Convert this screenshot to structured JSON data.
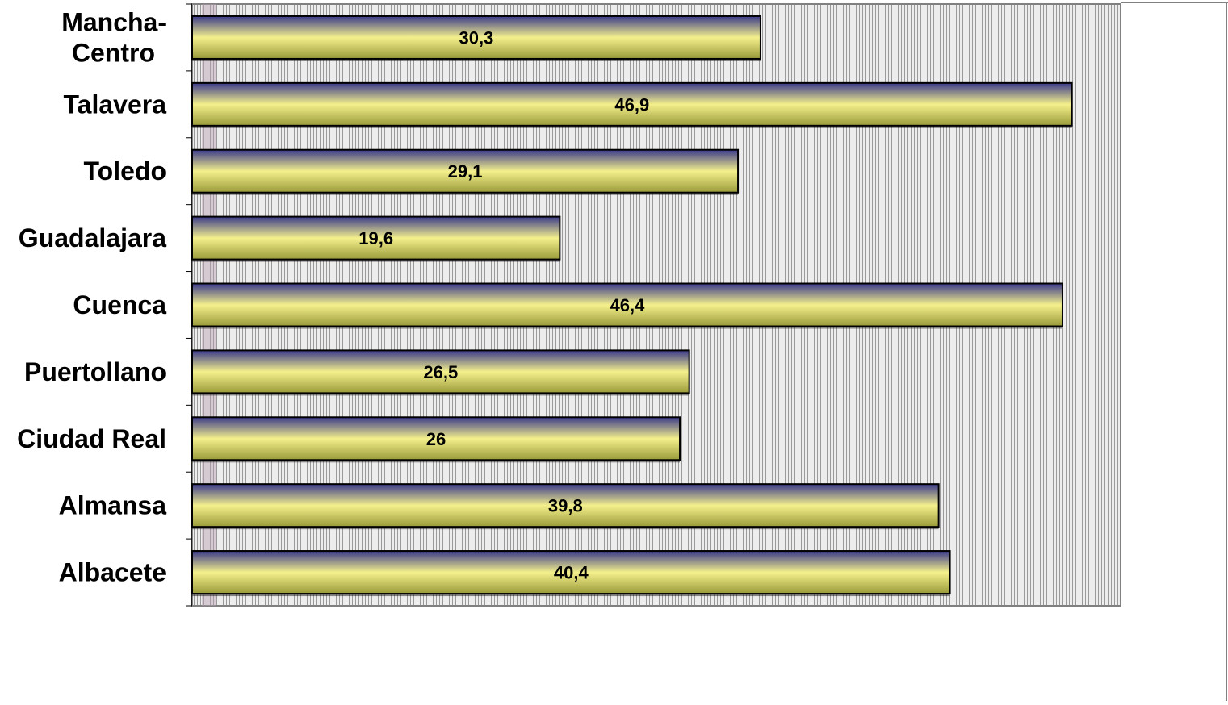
{
  "chart_data": {
    "type": "bar",
    "orientation": "horizontal",
    "categories": [
      "Mancha-Centro",
      "Talavera",
      "Toledo",
      "Guadalajara",
      "Cuenca",
      "Puertollano",
      "Ciudad Real",
      "Almansa",
      "Albacete"
    ],
    "category_lines": [
      [
        "Mancha-",
        "Centro"
      ],
      [
        "Talavera"
      ],
      [
        "Toledo"
      ],
      [
        "Guadalajara"
      ],
      [
        "Cuenca"
      ],
      [
        "Puertollano"
      ],
      [
        "Ciudad Real"
      ],
      [
        "Almansa"
      ],
      [
        "Albacete"
      ]
    ],
    "values": [
      30.3,
      46.9,
      29.1,
      19.6,
      46.4,
      26.5,
      26,
      39.8,
      40.4
    ],
    "value_labels": [
      "30,3",
      "46,9",
      "29,1",
      "19,6",
      "46,4",
      "26,5",
      "26",
      "39,8",
      "40,4"
    ],
    "title": "",
    "xlabel": "",
    "ylabel": "",
    "xlim": [
      0,
      49.5
    ],
    "grid": false,
    "legend": "none",
    "colors": {
      "bar_top": "#3a3a8a",
      "bar_mid": "#f4f08c",
      "bar_bottom": "#9a9a3a",
      "plot_background": "#ededed",
      "hatch": "#9a9a9a",
      "left_band": "#b8a0b0"
    }
  }
}
